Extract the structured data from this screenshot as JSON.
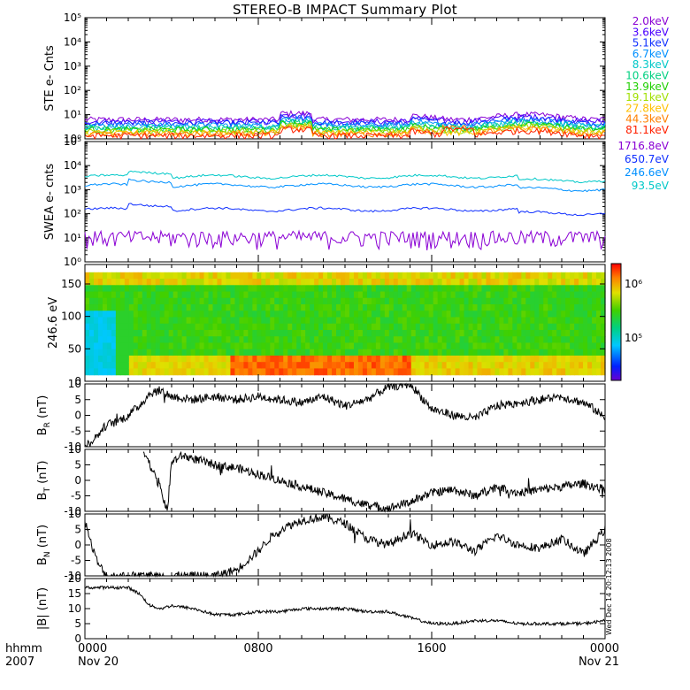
{
  "title": "STEREO-B IMPACT Summary Plot",
  "x_axis": {
    "tick_labels": [
      "0000",
      "0800",
      "1600",
      "0000"
    ],
    "date_labels": [
      "Nov 20",
      "",
      "",
      "Nov 21"
    ],
    "left_labels": [
      "hhmm",
      "2007"
    ],
    "range_hours": [
      0,
      24
    ]
  },
  "side_note": "Wed Dec 14 20:12:13 2008",
  "colors": {
    "ste": [
      "#8a00d4",
      "#4b00ff",
      "#1030ff",
      "#0090ff",
      "#00c8c8",
      "#00d080",
      "#20d000",
      "#a0e000",
      "#ffc000",
      "#ff8000",
      "#ff2000"
    ],
    "swea": [
      "#8a00d4",
      "#1030ff",
      "#0090ff",
      "#00c8c8"
    ],
    "mag_line": "#000000"
  },
  "chart_data": [
    {
      "type": "line",
      "ylabel": "STE e- Cnts",
      "yscale": "log",
      "ylim": [
        1,
        100000
      ],
      "tick_labels": [
        "10⁰",
        "10¹",
        "10²",
        "10³",
        "10⁴",
        "10⁵"
      ],
      "legend_placement": "right",
      "series": [
        {
          "name": "2.0keV",
          "level": 6.0
        },
        {
          "name": "3.6keV",
          "level": 5.0
        },
        {
          "name": "5.1keV",
          "level": 4.2
        },
        {
          "name": "6.7keV",
          "level": 3.5
        },
        {
          "name": "8.3keV",
          "level": 3.0
        },
        {
          "name": "10.6keV",
          "level": 2.6
        },
        {
          "name": "13.9keV",
          "level": 2.3
        },
        {
          "name": "19.1keV",
          "level": 2.0
        },
        {
          "name": "27.8keV",
          "level": 1.7
        },
        {
          "name": "44.3keV",
          "level": 1.5
        },
        {
          "name": "81.1keV",
          "level": 1.3
        }
      ]
    },
    {
      "type": "line",
      "ylabel": "SWEA e- cnts",
      "yscale": "log",
      "ylim": [
        1,
        100000
      ],
      "tick_labels": [
        "10⁰",
        "10¹",
        "10²",
        "10³",
        "10⁴",
        "10⁵"
      ],
      "legend_placement": "right",
      "series": [
        {
          "name": "1716.8eV",
          "level": 10
        },
        {
          "name": "650.7eV",
          "level": 150
        },
        {
          "name": "246.6eV",
          "level": 1500
        },
        {
          "name": "93.5eV",
          "level": 3500
        }
      ]
    },
    {
      "type": "heatmap",
      "ylabel": "246.6 eV",
      "ylim": [
        0,
        180
      ],
      "tick_labels": [
        "0",
        "50",
        "100",
        "150"
      ],
      "colorbar_labels": [
        "10⁶",
        "10⁵"
      ],
      "colorscale": "rainbow"
    },
    {
      "type": "line",
      "ylabel": "B_R (nT)",
      "ylim": [
        -10,
        10
      ],
      "tick_labels": [
        "10",
        "5",
        "0",
        "-5",
        "-10"
      ],
      "x": [
        0,
        0.5,
        1,
        1.5,
        2,
        2.5,
        3,
        3.5,
        4,
        5,
        6,
        7,
        8,
        9,
        10,
        11,
        12,
        13,
        14,
        15,
        16,
        17,
        18,
        19,
        20,
        21,
        22,
        23,
        23.5,
        24
      ],
      "values": [
        -10,
        -7,
        -3,
        -2,
        0,
        3,
        7,
        8,
        6,
        5,
        6,
        5,
        6,
        5,
        4,
        6,
        3,
        5,
        9,
        10,
        2,
        0,
        -1,
        3,
        4,
        5,
        6,
        4,
        2,
        -1
      ]
    },
    {
      "type": "line",
      "ylabel": "B_T (nT)",
      "ylim": [
        -10,
        10
      ],
      "tick_labels": [
        "10",
        "5",
        "0",
        "-5",
        "-10"
      ],
      "x": [
        2.7,
        3,
        3.5,
        3.8,
        4,
        4.5,
        5,
        6,
        7,
        8,
        9,
        10,
        11,
        12,
        13,
        14,
        15,
        16,
        17,
        18,
        19,
        20,
        21,
        22,
        23,
        24
      ],
      "values": [
        10,
        5,
        -3,
        -10,
        6,
        8,
        7,
        5,
        4,
        2,
        0,
        -2,
        -4,
        -6,
        -8,
        -9,
        -7,
        -4,
        -3,
        -5,
        -2,
        -4,
        -3,
        -2,
        -1,
        -3
      ]
    },
    {
      "type": "line",
      "ylabel": "B_N (nT)",
      "ylim": [
        -10,
        10
      ],
      "tick_labels": [
        "10",
        "5",
        "0",
        "-5",
        "-10"
      ],
      "x": [
        0,
        0.3,
        0.6,
        1,
        2,
        3,
        4,
        5,
        6,
        7,
        7.5,
        8,
        8.5,
        9,
        10,
        11,
        12,
        13,
        14,
        15,
        16,
        17,
        18,
        19,
        20,
        21,
        22,
        23,
        24
      ],
      "values": [
        8,
        0,
        -6,
        -10,
        -10,
        -10,
        -10,
        -10,
        -10,
        -8,
        -5,
        -2,
        2,
        5,
        8,
        9,
        7,
        2,
        0,
        4,
        0,
        1,
        -2,
        3,
        0,
        -1,
        2,
        -3,
        5
      ]
    },
    {
      "type": "line",
      "ylabel": "|B| (nT)",
      "ylim": [
        0,
        20
      ],
      "tick_labels": [
        "20",
        "15",
        "10",
        "5",
        "0"
      ],
      "x": [
        0,
        1,
        2,
        2.5,
        3,
        3.5,
        4,
        5,
        6,
        7,
        8,
        9,
        10,
        11,
        12,
        13,
        14,
        15,
        16,
        17,
        18,
        19,
        20,
        21,
        22,
        23,
        24
      ],
      "values": [
        17,
        17,
        17,
        15,
        11,
        10,
        11,
        10,
        8,
        8,
        9,
        9,
        10,
        10,
        10,
        9,
        9,
        7,
        5,
        5,
        6,
        6,
        5,
        5,
        5,
        5,
        6
      ]
    }
  ]
}
